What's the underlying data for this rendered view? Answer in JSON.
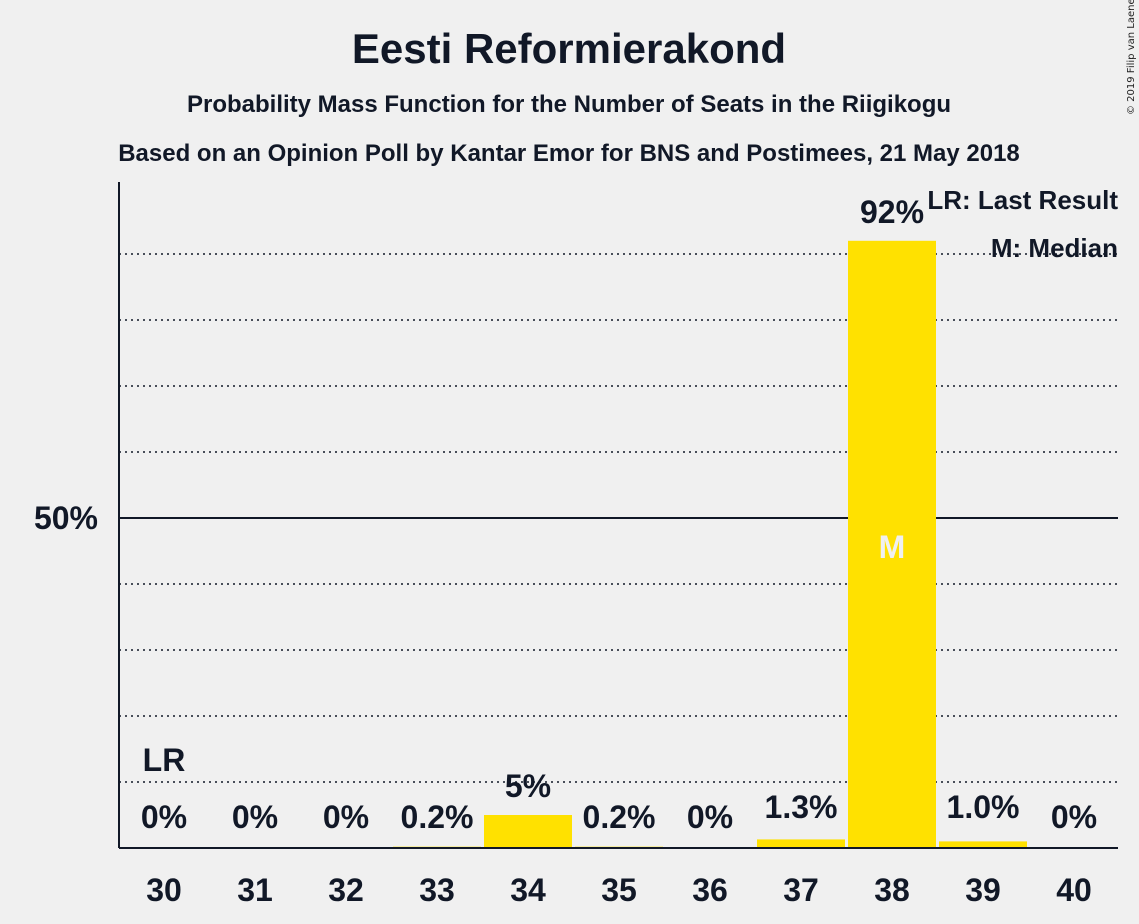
{
  "chart_data": {
    "type": "bar",
    "title": "Eesti Reformierakond",
    "subtitle": "Probability Mass Function for the Number of Seats in the Riigikogu",
    "subtitle2": "Based on an Opinion Poll by Kantar Emor for BNS and Postimees, 21 May 2018",
    "copyright": "© 2019 Filip van Laenen",
    "categories": [
      "30",
      "31",
      "32",
      "33",
      "34",
      "35",
      "36",
      "37",
      "38",
      "39",
      "40"
    ],
    "values": [
      0,
      0,
      0,
      0.2,
      5,
      0.2,
      0,
      1.3,
      92,
      1.0,
      0
    ],
    "value_labels": [
      "0%",
      "0%",
      "0%",
      "0.2%",
      "5%",
      "0.2%",
      "0%",
      "1.3%",
      "92%",
      "1.0%",
      "0%"
    ],
    "ylim": [
      0,
      100
    ],
    "y_major_tick": {
      "value": 50,
      "label": "50%"
    },
    "y_minor_gridlines": [
      10,
      20,
      30,
      40,
      60,
      70,
      80,
      90
    ],
    "grid": true,
    "bar_color": "#ffe100",
    "last_result": {
      "category": "30",
      "label": "LR"
    },
    "median": {
      "category": "38",
      "label": "M"
    },
    "legend": {
      "position": "top-right",
      "entries": [
        "LR: Last Result",
        "M: Median"
      ]
    }
  }
}
